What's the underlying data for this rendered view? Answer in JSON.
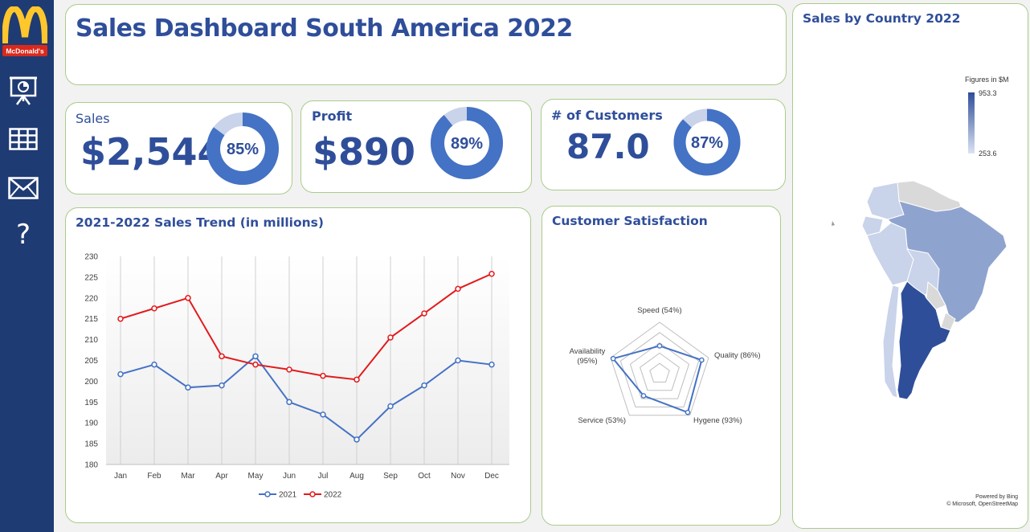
{
  "header": {
    "title": "Sales Dashboard South America 2022"
  },
  "sidebar": {
    "logo_text": "McDonald's",
    "items": [
      {
        "icon": "presentation-icon"
      },
      {
        "icon": "table-grid-icon"
      },
      {
        "icon": "mail-icon"
      },
      {
        "icon": "help-icon",
        "glyph": "?"
      }
    ]
  },
  "kpis": {
    "sales": {
      "label": "Sales",
      "value": "$2,544",
      "percent_label": "85%",
      "percent": 85
    },
    "profit": {
      "label": "Profit",
      "value": "$890",
      "percent_label": "89%",
      "percent": 89
    },
    "customers": {
      "label": "# of Customers",
      "value": "87.0",
      "percent_label": "87%",
      "percent": 87
    }
  },
  "trend": {
    "title": "2021-2022 Sales Trend (in millions)",
    "chart_data": {
      "type": "line",
      "categories": [
        "Jan",
        "Feb",
        "Mar",
        "Apr",
        "May",
        "Jun",
        "Jul",
        "Aug",
        "Sep",
        "Oct",
        "Nov",
        "Dec"
      ],
      "series": [
        {
          "name": "2021",
          "color": "#4472c4",
          "values": [
            201.7,
            204,
            198.5,
            199,
            206,
            195,
            192,
            186,
            194,
            199,
            205,
            204
          ]
        },
        {
          "name": "2022",
          "color": "#e31a1c",
          "values": [
            215,
            217.5,
            220,
            206,
            204,
            202.8,
            201.3,
            200.4,
            210.5,
            216.3,
            222.2,
            225.8
          ]
        }
      ],
      "yticks": [
        180,
        185,
        190,
        195,
        200,
        205,
        210,
        215,
        220,
        225,
        230
      ],
      "ylim": [
        180,
        230
      ]
    }
  },
  "satisfaction": {
    "title": "Customer Satisfaction",
    "chart_data": {
      "type": "radar",
      "axes": [
        {
          "label": "Speed (54%)",
          "value": 54
        },
        {
          "label": "Quality (86%)",
          "value": 86
        },
        {
          "label": "Hygene (93%)",
          "value": 93
        },
        {
          "label": "Service (53%)",
          "value": 53
        },
        {
          "label_line1": "Availability",
          "label_line2": "(95%)",
          "value": 95
        }
      ],
      "color": "#4472c4"
    }
  },
  "map": {
    "title": "Sales by Country 2022",
    "legend_title": "Figures in $M",
    "legend_max": "953.3",
    "legend_min": "253.6",
    "powered_by": "Powered by Bing",
    "attribution": "© Microsoft, OpenStreetMap",
    "colors": {
      "high": "#2f4e9a",
      "mid": "#8fa3cf",
      "low": "#c9d3ea",
      "none": "#d9d9d9"
    }
  },
  "theme": {
    "accent": "#2f4e9a",
    "sidebar": "#1f3b73",
    "card_border": "#a9cc8a",
    "logo_red": "#da291c",
    "logo_gold": "#ffc72c"
  }
}
